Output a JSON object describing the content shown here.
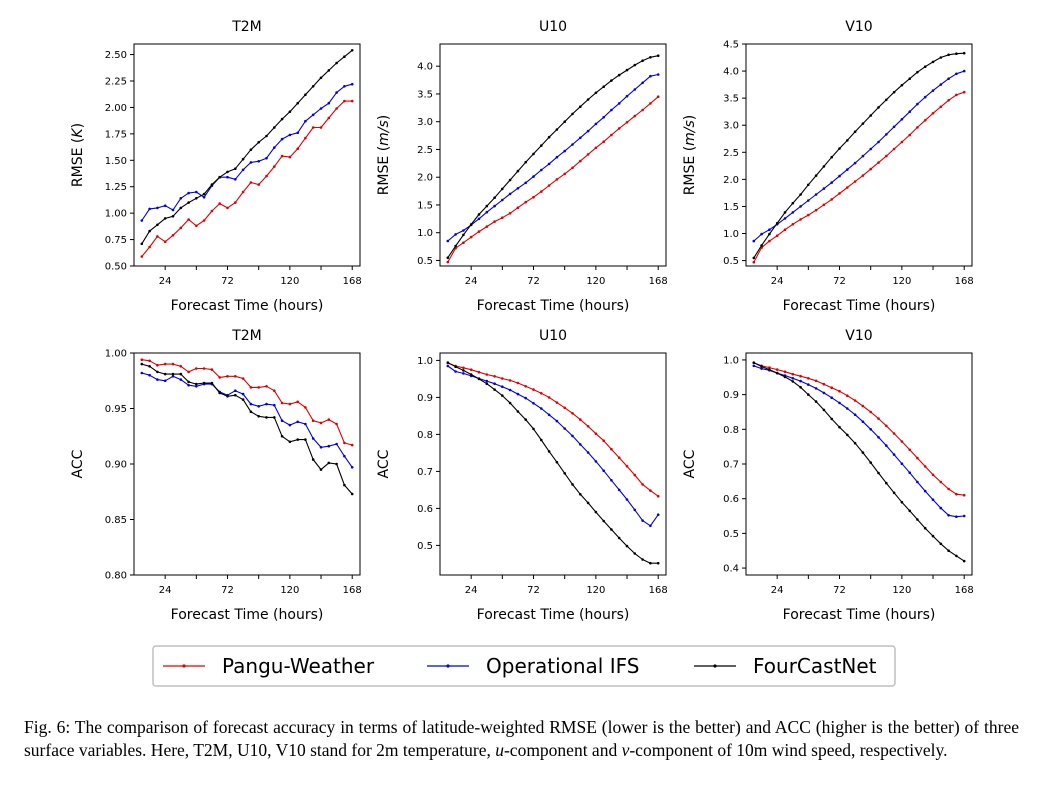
{
  "figure": {
    "legend": [
      {
        "label": "Pangu-Weather",
        "color": "#e00000"
      },
      {
        "label": "Operational IFS",
        "color": "#0000e0"
      },
      {
        "label": "FourCastNet",
        "color": "#000000"
      }
    ]
  },
  "caption": {
    "label": "Fig. 6:",
    "text_1": "The comparison of forecast accuracy in terms of latitude-weighted RMSE (lower is the better) and ACC (higher is the better) of three surface variables. Here, T2M, U10, V10 stand for 2m temperature,",
    "u": "u",
    "text_2": "-component and",
    "v": "v",
    "text_3": "-component of 10m wind speed, respectively."
  },
  "chart_data": [
    {
      "type": "line",
      "title": "T2M",
      "xlabel": "Forecast Time (hours)",
      "ylabel": "RMSE (K)",
      "ylim": [
        0.5,
        2.6
      ],
      "yticks": [
        "0.50",
        "0.75",
        "1.00",
        "1.25",
        "1.50",
        "1.75",
        "2.00",
        "2.25",
        "2.50"
      ],
      "xlim": [
        0,
        174
      ],
      "xticks": [
        24,
        72,
        120,
        168
      ],
      "xminor": [
        48,
        96,
        144
      ],
      "x": [
        6,
        12,
        18,
        24,
        30,
        36,
        42,
        48,
        54,
        60,
        66,
        72,
        78,
        84,
        90,
        96,
        102,
        108,
        114,
        120,
        126,
        132,
        138,
        144,
        150,
        156,
        162,
        168
      ],
      "series": [
        {
          "name": "Pangu-Weather",
          "color": "#e00000",
          "values": [
            0.59,
            0.68,
            0.78,
            0.73,
            0.79,
            0.86,
            0.94,
            0.88,
            0.93,
            1.02,
            1.09,
            1.05,
            1.1,
            1.2,
            1.29,
            1.27,
            1.35,
            1.44,
            1.54,
            1.53,
            1.61,
            1.71,
            1.81,
            1.81,
            1.9,
            1.99,
            2.06,
            2.06
          ]
        },
        {
          "name": "Operational IFS",
          "color": "#0000e0",
          "values": [
            0.93,
            1.04,
            1.05,
            1.07,
            1.03,
            1.14,
            1.19,
            1.2,
            1.15,
            1.26,
            1.34,
            1.34,
            1.32,
            1.41,
            1.48,
            1.49,
            1.52,
            1.62,
            1.7,
            1.74,
            1.76,
            1.87,
            1.93,
            1.99,
            2.04,
            2.14,
            2.2,
            2.22
          ]
        },
        {
          "name": "FourCastNet",
          "color": "#000000",
          "values": [
            0.71,
            0.83,
            0.89,
            0.95,
            0.97,
            1.05,
            1.1,
            1.14,
            1.18,
            1.27,
            1.34,
            1.39,
            1.42,
            1.51,
            1.6,
            1.67,
            1.73,
            1.81,
            1.89,
            1.96,
            2.04,
            2.12,
            2.2,
            2.28,
            2.35,
            2.42,
            2.48,
            2.54
          ]
        }
      ]
    },
    {
      "type": "line",
      "title": "U10",
      "xlabel": "Forecast Time (hours)",
      "ylabel": "RMSE (m/s)",
      "ylim": [
        0.4,
        4.4
      ],
      "yticks": [
        "0.5",
        "1.0",
        "1.5",
        "2.0",
        "2.5",
        "3.0",
        "3.5",
        "4.0"
      ],
      "xlim": [
        0,
        174
      ],
      "xticks": [
        24,
        72,
        120,
        168
      ],
      "xminor": [
        48,
        96,
        144
      ],
      "x": [
        6,
        12,
        18,
        24,
        30,
        36,
        42,
        48,
        54,
        60,
        66,
        72,
        78,
        84,
        90,
        96,
        102,
        108,
        114,
        120,
        126,
        132,
        138,
        144,
        150,
        156,
        162,
        168
      ],
      "series": [
        {
          "name": "Pangu-Weather",
          "color": "#e00000",
          "values": [
            0.47,
            0.72,
            0.82,
            0.92,
            1.02,
            1.11,
            1.2,
            1.27,
            1.35,
            1.45,
            1.55,
            1.64,
            1.74,
            1.85,
            1.96,
            2.06,
            2.17,
            2.29,
            2.41,
            2.53,
            2.64,
            2.76,
            2.88,
            2.99,
            3.1,
            3.21,
            3.33,
            3.45
          ]
        },
        {
          "name": "Operational IFS",
          "color": "#0000e0",
          "values": [
            0.85,
            0.97,
            1.04,
            1.14,
            1.25,
            1.37,
            1.48,
            1.59,
            1.7,
            1.8,
            1.9,
            2.01,
            2.13,
            2.24,
            2.36,
            2.47,
            2.59,
            2.71,
            2.83,
            2.96,
            3.08,
            3.21,
            3.33,
            3.46,
            3.58,
            3.7,
            3.82,
            3.85
          ]
        },
        {
          "name": "FourCastNet",
          "color": "#000000",
          "values": [
            0.55,
            0.76,
            0.96,
            1.15,
            1.33,
            1.48,
            1.63,
            1.79,
            1.95,
            2.11,
            2.27,
            2.42,
            2.57,
            2.72,
            2.86,
            3.0,
            3.14,
            3.27,
            3.4,
            3.52,
            3.63,
            3.74,
            3.84,
            3.93,
            4.02,
            4.1,
            4.16,
            4.19
          ]
        }
      ]
    },
    {
      "type": "line",
      "title": "V10",
      "xlabel": "Forecast Time (hours)",
      "ylabel": "RMSE (m/s)",
      "ylim": [
        0.4,
        4.5
      ],
      "yticks": [
        "0.5",
        "1.0",
        "1.5",
        "2.0",
        "2.5",
        "3.0",
        "3.5",
        "4.0",
        "4.5"
      ],
      "xlim": [
        0,
        174
      ],
      "xticks": [
        24,
        72,
        120,
        168
      ],
      "xminor": [
        48,
        96,
        144
      ],
      "x": [
        6,
        12,
        18,
        24,
        30,
        36,
        42,
        48,
        54,
        60,
        66,
        72,
        78,
        84,
        90,
        96,
        102,
        108,
        114,
        120,
        126,
        132,
        138,
        144,
        150,
        156,
        162,
        168
      ],
      "series": [
        {
          "name": "Pangu-Weather",
          "color": "#e00000",
          "values": [
            0.47,
            0.74,
            0.86,
            0.96,
            1.07,
            1.17,
            1.26,
            1.34,
            1.43,
            1.53,
            1.63,
            1.74,
            1.85,
            1.96,
            2.07,
            2.19,
            2.31,
            2.43,
            2.56,
            2.69,
            2.82,
            2.96,
            3.09,
            3.22,
            3.34,
            3.46,
            3.56,
            3.61
          ]
        },
        {
          "name": "Operational IFS",
          "color": "#0000e0",
          "values": [
            0.86,
            0.99,
            1.07,
            1.17,
            1.28,
            1.39,
            1.5,
            1.61,
            1.72,
            1.83,
            1.94,
            2.06,
            2.18,
            2.3,
            2.43,
            2.56,
            2.69,
            2.83,
            2.97,
            3.11,
            3.25,
            3.39,
            3.52,
            3.64,
            3.75,
            3.86,
            3.95,
            4.0
          ]
        },
        {
          "name": "FourCastNet",
          "color": "#000000",
          "values": [
            0.55,
            0.78,
            0.99,
            1.19,
            1.39,
            1.56,
            1.72,
            1.9,
            2.07,
            2.24,
            2.41,
            2.57,
            2.72,
            2.88,
            3.03,
            3.18,
            3.33,
            3.47,
            3.61,
            3.74,
            3.86,
            3.98,
            4.08,
            4.17,
            4.25,
            4.3,
            4.32,
            4.33
          ]
        }
      ]
    },
    {
      "type": "line",
      "title": "T2M",
      "xlabel": "Forecast Time (hours)",
      "ylabel": "ACC",
      "ylim": [
        0.8,
        1.0
      ],
      "yticks": [
        "0.80",
        "0.85",
        "0.90",
        "0.95",
        "1.00"
      ],
      "xlim": [
        0,
        174
      ],
      "xticks": [
        24,
        72,
        120,
        168
      ],
      "xminor": [
        48,
        96,
        144
      ],
      "x": [
        6,
        12,
        18,
        24,
        30,
        36,
        42,
        48,
        54,
        60,
        66,
        72,
        78,
        84,
        90,
        96,
        102,
        108,
        114,
        120,
        126,
        132,
        138,
        144,
        150,
        156,
        162,
        168
      ],
      "series": [
        {
          "name": "Pangu-Weather",
          "color": "#e00000",
          "values": [
            0.994,
            0.993,
            0.989,
            0.99,
            0.99,
            0.988,
            0.983,
            0.986,
            0.986,
            0.985,
            0.978,
            0.979,
            0.979,
            0.977,
            0.969,
            0.969,
            0.97,
            0.966,
            0.955,
            0.954,
            0.956,
            0.951,
            0.939,
            0.937,
            0.94,
            0.936,
            0.919,
            0.917
          ]
        },
        {
          "name": "Operational IFS",
          "color": "#0000e0",
          "values": [
            0.982,
            0.98,
            0.976,
            0.975,
            0.979,
            0.976,
            0.971,
            0.97,
            0.972,
            0.972,
            0.965,
            0.962,
            0.966,
            0.963,
            0.954,
            0.952,
            0.954,
            0.953,
            0.939,
            0.935,
            0.938,
            0.936,
            0.923,
            0.915,
            0.916,
            0.918,
            0.907,
            0.897
          ]
        },
        {
          "name": "FourCastNet",
          "color": "#000000",
          "values": [
            0.99,
            0.988,
            0.983,
            0.981,
            0.981,
            0.981,
            0.974,
            0.972,
            0.973,
            0.973,
            0.964,
            0.961,
            0.962,
            0.958,
            0.947,
            0.943,
            0.942,
            0.942,
            0.925,
            0.92,
            0.922,
            0.922,
            0.904,
            0.895,
            0.901,
            0.9,
            0.881,
            0.873
          ]
        }
      ]
    },
    {
      "type": "line",
      "title": "U10",
      "xlabel": "Forecast Time (hours)",
      "ylabel": "ACC",
      "ylim": [
        0.42,
        1.02
      ],
      "yticks": [
        "0.5",
        "0.6",
        "0.7",
        "0.8",
        "0.9",
        "1.0"
      ],
      "xlim": [
        0,
        174
      ],
      "xticks": [
        24,
        72,
        120,
        168
      ],
      "xminor": [
        48,
        96,
        144
      ],
      "x": [
        6,
        12,
        18,
        24,
        30,
        36,
        42,
        48,
        54,
        60,
        66,
        72,
        78,
        84,
        90,
        96,
        102,
        108,
        114,
        120,
        126,
        132,
        138,
        144,
        150,
        156,
        162,
        168
      ],
      "series": [
        {
          "name": "Pangu-Weather",
          "color": "#e00000",
          "values": [
            0.993,
            0.985,
            0.98,
            0.975,
            0.968,
            0.962,
            0.957,
            0.951,
            0.946,
            0.939,
            0.93,
            0.921,
            0.911,
            0.9,
            0.886,
            0.872,
            0.857,
            0.84,
            0.822,
            0.802,
            0.783,
            0.76,
            0.737,
            0.714,
            0.69,
            0.665,
            0.648,
            0.633
          ]
        },
        {
          "name": "Operational IFS",
          "color": "#0000e0",
          "values": [
            0.985,
            0.97,
            0.965,
            0.958,
            0.951,
            0.944,
            0.937,
            0.929,
            0.92,
            0.909,
            0.898,
            0.884,
            0.87,
            0.853,
            0.836,
            0.816,
            0.796,
            0.773,
            0.751,
            0.727,
            0.702,
            0.676,
            0.65,
            0.624,
            0.596,
            0.567,
            0.553,
            0.583
          ]
        },
        {
          "name": "FourCastNet",
          "color": "#000000",
          "values": [
            0.994,
            0.983,
            0.973,
            0.962,
            0.95,
            0.937,
            0.921,
            0.905,
            0.885,
            0.862,
            0.84,
            0.815,
            0.785,
            0.754,
            0.725,
            0.695,
            0.665,
            0.638,
            0.615,
            0.59,
            0.566,
            0.543,
            0.52,
            0.498,
            0.478,
            0.462,
            0.452,
            0.452
          ]
        }
      ]
    },
    {
      "type": "line",
      "title": "V10",
      "xlabel": "Forecast Time (hours)",
      "ylabel": "ACC",
      "ylim": [
        0.38,
        1.02
      ],
      "yticks": [
        "0.4",
        "0.5",
        "0.6",
        "0.7",
        "0.8",
        "0.9",
        "1.0"
      ],
      "xlim": [
        0,
        174
      ],
      "xticks": [
        24,
        72,
        120,
        168
      ],
      "xminor": [
        48,
        96,
        144
      ],
      "x": [
        6,
        12,
        18,
        24,
        30,
        36,
        42,
        48,
        54,
        60,
        66,
        72,
        78,
        84,
        90,
        96,
        102,
        108,
        114,
        120,
        126,
        132,
        138,
        144,
        150,
        156,
        162,
        168
      ],
      "series": [
        {
          "name": "Pangu-Weather",
          "color": "#e00000",
          "values": [
            0.992,
            0.983,
            0.978,
            0.972,
            0.966,
            0.959,
            0.953,
            0.947,
            0.94,
            0.93,
            0.92,
            0.91,
            0.897,
            0.883,
            0.867,
            0.85,
            0.831,
            0.81,
            0.788,
            0.765,
            0.741,
            0.717,
            0.693,
            0.669,
            0.648,
            0.628,
            0.613,
            0.61
          ]
        },
        {
          "name": "Operational IFS",
          "color": "#0000e0",
          "values": [
            0.983,
            0.975,
            0.97,
            0.962,
            0.955,
            0.947,
            0.939,
            0.929,
            0.918,
            0.905,
            0.891,
            0.876,
            0.86,
            0.842,
            0.822,
            0.8,
            0.777,
            0.753,
            0.727,
            0.701,
            0.675,
            0.648,
            0.622,
            0.597,
            0.573,
            0.552,
            0.548,
            0.55
          ]
        },
        {
          "name": "FourCastNet",
          "color": "#000000",
          "values": [
            0.992,
            0.981,
            0.972,
            0.962,
            0.951,
            0.938,
            0.921,
            0.9,
            0.88,
            0.856,
            0.83,
            0.806,
            0.784,
            0.76,
            0.733,
            0.704,
            0.674,
            0.645,
            0.617,
            0.59,
            0.565,
            0.54,
            0.515,
            0.492,
            0.47,
            0.45,
            0.435,
            0.42
          ]
        }
      ]
    }
  ]
}
